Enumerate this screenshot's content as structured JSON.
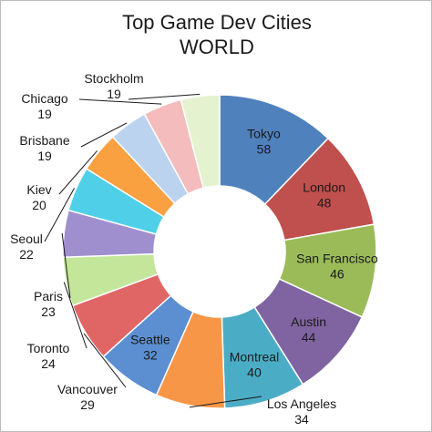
{
  "chart_data": {
    "type": "pie",
    "variant": "donut",
    "title": "Top Game Dev Cities",
    "subtitle": "WORLD",
    "start": "top",
    "direction": "clockwise",
    "slices": [
      {
        "label": "Tokyo",
        "value": 58,
        "color": "#4f81bd",
        "label_pos": "inside"
      },
      {
        "label": "London",
        "value": 48,
        "color": "#c0504d",
        "label_pos": "inside"
      },
      {
        "label": "San Francisco",
        "value": 46,
        "color": "#9bbb59",
        "label_pos": "inside"
      },
      {
        "label": "Austin",
        "value": 44,
        "color": "#8064a2",
        "label_pos": "inside"
      },
      {
        "label": "Montreal",
        "value": 40,
        "color": "#4bacc6",
        "label_pos": "inside"
      },
      {
        "label": "Los Angeles",
        "value": 34,
        "color": "#f79646",
        "label_pos": "outside"
      },
      {
        "label": "Seattle",
        "value": 32,
        "color": "#5b8fd1",
        "label_pos": "inside"
      },
      {
        "label": "Vancouver",
        "value": 29,
        "color": "#e06666",
        "label_pos": "outside"
      },
      {
        "label": "Toronto",
        "value": 24,
        "color": "#c4e69a",
        "label_pos": "outside"
      },
      {
        "label": "Paris",
        "value": 23,
        "color": "#a08fcf",
        "label_pos": "outside"
      },
      {
        "label": "Seoul",
        "value": 22,
        "color": "#4fd0e8",
        "label_pos": "outside"
      },
      {
        "label": "Kiev",
        "value": 20,
        "color": "#f9a040",
        "label_pos": "outside"
      },
      {
        "label": "Brisbane",
        "value": 19,
        "color": "#bcd3ef",
        "label_pos": "outside"
      },
      {
        "label": "Chicago",
        "value": 19,
        "color": "#f4bcbc",
        "label_pos": "outside"
      },
      {
        "label": "Stockholm",
        "value": 19,
        "color": "#e4f2cf",
        "label_pos": "outside"
      }
    ]
  }
}
